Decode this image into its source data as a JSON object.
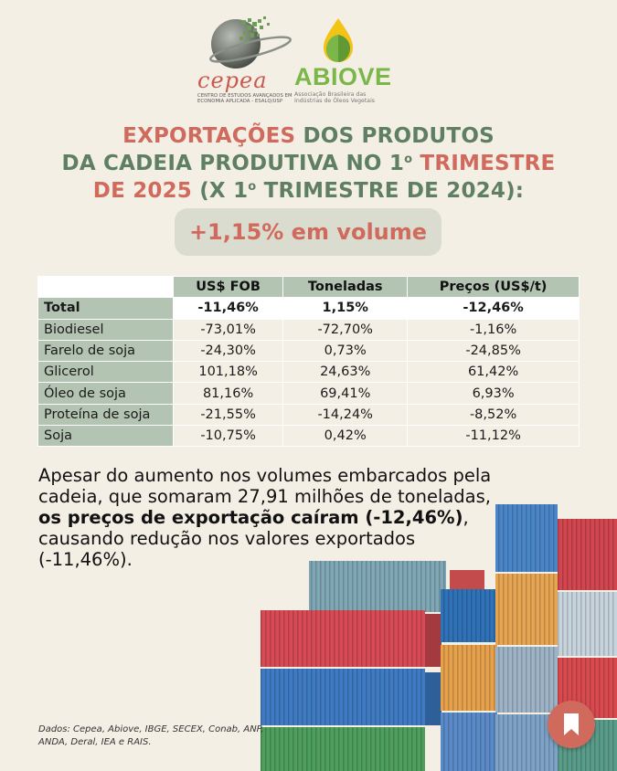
{
  "logos": {
    "cepea": {
      "name": "cepea",
      "subtitle": "CENTRO DE ESTUDOS AVANÇADOS EM ECONOMIA APLICADA - ESALQ/USP"
    },
    "abiove": {
      "name": "ABIOVE",
      "subtitle": "Associação Brasileira das Indústrias de Óleos Vegetais"
    }
  },
  "headline": {
    "line1_red": "EXPORTAÇÕES",
    "line1_rest": " DOS PRODUTOS",
    "line2_main": "DA CADEIA PRODUTIVA NO 1",
    "line2_sup": "o",
    "line2_red": " TRIMESTRE",
    "line3_red": "DE 2025",
    "line3_rest": " (X 1",
    "line3_sup": "o",
    "line3_end": " TRIMESTRE DE 2024):"
  },
  "highlight": "+1,15% em volume",
  "table": {
    "headers": [
      "",
      "US$ FOB",
      "Toneladas",
      "Preços (US$/t)"
    ],
    "rows": [
      {
        "name": "Total",
        "fob": "-11,46%",
        "ton": "1,15%",
        "price": "-12,46%"
      },
      {
        "name": "Biodiesel",
        "fob": "-73,01%",
        "ton": "-72,70%",
        "price": "-1,16%"
      },
      {
        "name": "Farelo de soja",
        "fob": "-24,30%",
        "ton": "0,73%",
        "price": "-24,85%"
      },
      {
        "name": "Glicerol",
        "fob": "101,18%",
        "ton": "24,63%",
        "price": "61,42%"
      },
      {
        "name": "Óleo de soja",
        "fob": "81,16%",
        "ton": "69,41%",
        "price": "6,93%"
      },
      {
        "name": "Proteína de soja",
        "fob": "-21,55%",
        "ton": "-14,24%",
        "price": "-8,52%"
      },
      {
        "name": "Soja",
        "fob": "-10,75%",
        "ton": "0,42%",
        "price": "-11,12%"
      }
    ]
  },
  "paragraph": {
    "part1": "Apesar do aumento nos volumes embarcados pela cadeia, que somaram 27,91 milhões de toneladas, ",
    "bold": "os preços de exportação caíram (-12,46%)",
    "part2": ", causando redução nos valores exportados (-11,46%)."
  },
  "source": "Dados: Cepea, Abiove, IBGE, SECEX, Conab, ANP, ANDA, Deral, IEA e RAIS.",
  "icons": {
    "bookmark": "bookmark-icon",
    "globe": "globe-icon",
    "leaf": "leaf-drop-icon"
  },
  "colors": {
    "background": "#f4efe5",
    "accent_red": "#d06a5c",
    "accent_green": "#5f7f62",
    "table_green": "#b4c4b2"
  }
}
